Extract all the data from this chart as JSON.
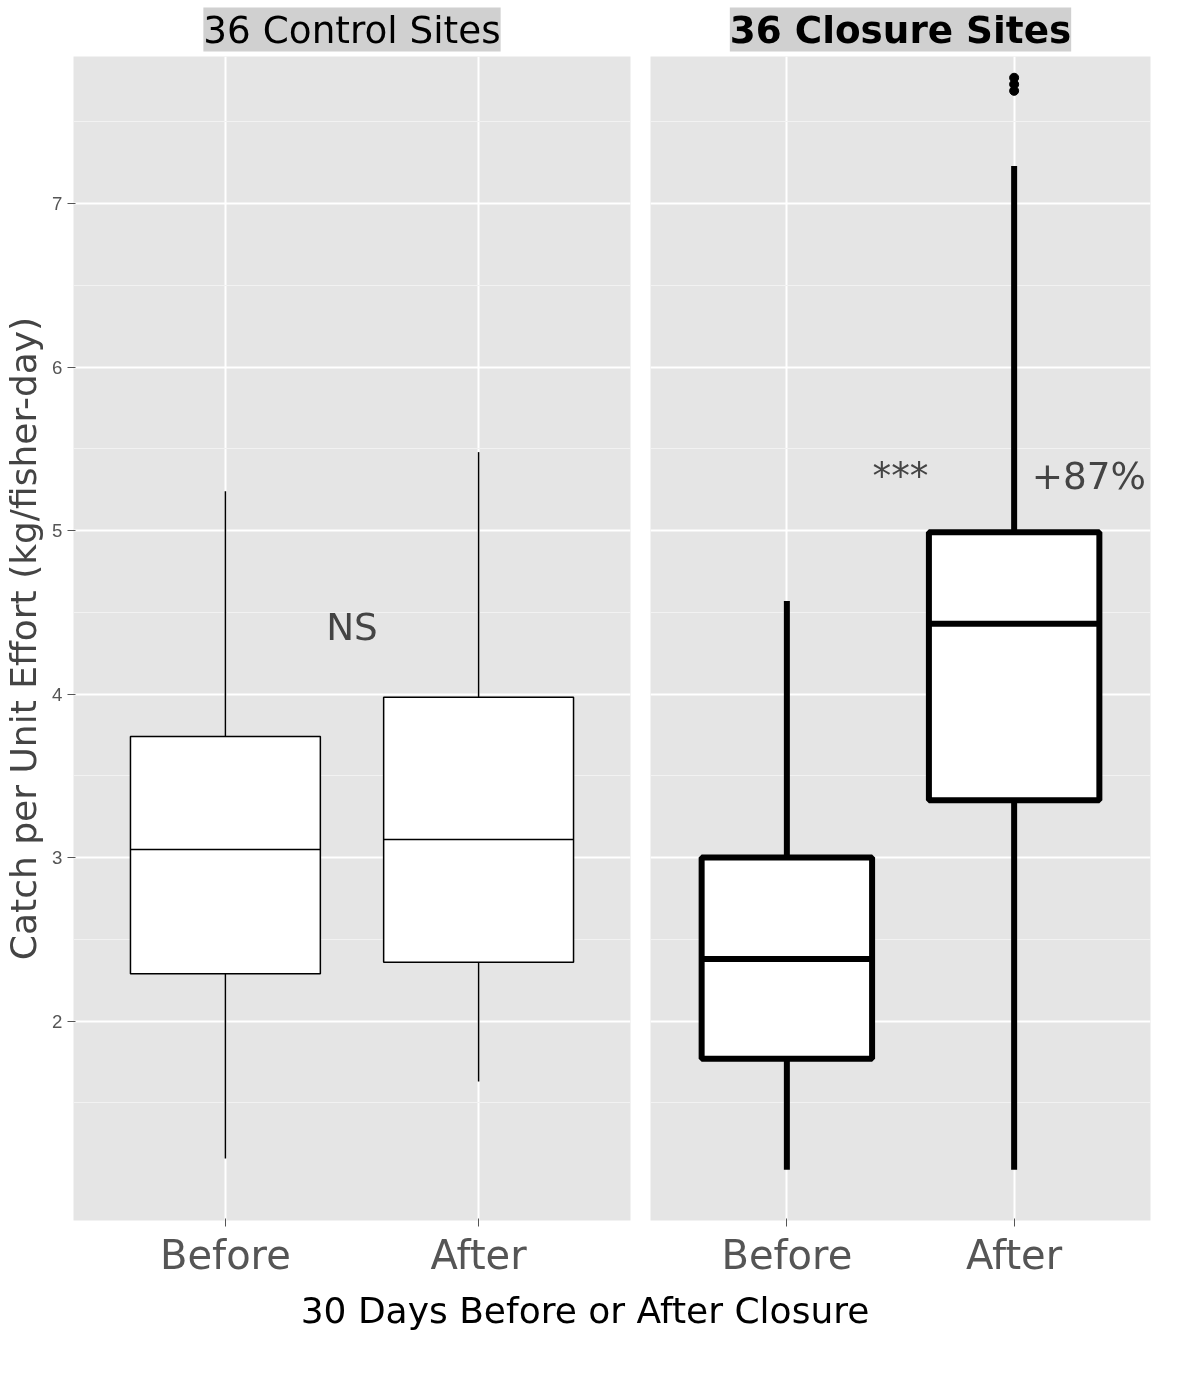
{
  "chart_data": [
    {
      "type": "box",
      "title": "36 Control Sites",
      "ylabel": "Catch per Unit Effort (kg/fisher-day)",
      "xlabel": "30 Days Before or After Closure",
      "categories": [
        "Before",
        "After"
      ],
      "ylim": [
        0.78,
        7.9
      ],
      "yticks": [
        2,
        3,
        4,
        5,
        6,
        7
      ],
      "grid": true,
      "annotations": [
        "NS"
      ],
      "boxes": [
        {
          "low": 1.16,
          "q1": 2.29,
          "median": 3.05,
          "q3": 3.74,
          "high": 5.24
        },
        {
          "low": 1.63,
          "q1": 2.36,
          "median": 3.11,
          "q3": 3.98,
          "high": 5.48
        }
      ]
    },
    {
      "type": "box",
      "title": "36 Closure Sites",
      "categories": [
        "Before",
        "After"
      ],
      "ylim": [
        0.78,
        7.9
      ],
      "yticks": [
        2,
        3,
        4,
        5,
        6,
        7
      ],
      "grid": true,
      "tick_labels": "x",
      "annotations": [
        "***",
        "+87%"
      ],
      "boxes": [
        {
          "low": 1.09,
          "q1": 1.77,
          "median": 2.38,
          "q3": 3.0,
          "high": 4.57
        },
        {
          "low": 1.09,
          "q1": 3.35,
          "median": 4.43,
          "q3": 4.99,
          "high": 7.23,
          "outliers": [
            7.77,
            7.73,
            7.69
          ]
        }
      ]
    }
  ]
}
